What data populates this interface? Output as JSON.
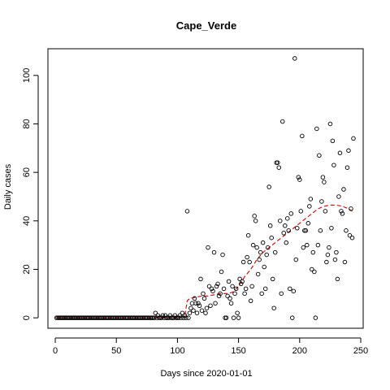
{
  "chart_data": {
    "type": "scatter",
    "title": "Cape_Verde",
    "xlabel": "Days since 2020-01-01",
    "ylabel": "Daily cases",
    "xlim": [
      -6,
      252
    ],
    "ylim": [
      -4.3,
      111
    ],
    "x_ticks": [
      0,
      50,
      100,
      150,
      200,
      250
    ],
    "y_ticks": [
      0,
      20,
      40,
      60,
      80,
      100
    ],
    "grid": false,
    "legend": "none",
    "colors": {
      "points": "#000000",
      "trend": "#d40000"
    },
    "points": [
      [
        1,
        0
      ],
      [
        2,
        0
      ],
      [
        3,
        0
      ],
      [
        4,
        0
      ],
      [
        5,
        0
      ],
      [
        6,
        0
      ],
      [
        7,
        0
      ],
      [
        8,
        0
      ],
      [
        9,
        0
      ],
      [
        10,
        0
      ],
      [
        11,
        0
      ],
      [
        12,
        0
      ],
      [
        13,
        0
      ],
      [
        14,
        0
      ],
      [
        15,
        0
      ],
      [
        16,
        0
      ],
      [
        17,
        0
      ],
      [
        18,
        0
      ],
      [
        19,
        0
      ],
      [
        20,
        0
      ],
      [
        21,
        0
      ],
      [
        22,
        0
      ],
      [
        23,
        0
      ],
      [
        24,
        0
      ],
      [
        25,
        0
      ],
      [
        26,
        0
      ],
      [
        27,
        0
      ],
      [
        28,
        0
      ],
      [
        29,
        0
      ],
      [
        30,
        0
      ],
      [
        31,
        0
      ],
      [
        32,
        0
      ],
      [
        33,
        0
      ],
      [
        34,
        0
      ],
      [
        35,
        0
      ],
      [
        36,
        0
      ],
      [
        37,
        0
      ],
      [
        38,
        0
      ],
      [
        39,
        0
      ],
      [
        40,
        0
      ],
      [
        41,
        0
      ],
      [
        42,
        0
      ],
      [
        43,
        0
      ],
      [
        44,
        0
      ],
      [
        45,
        0
      ],
      [
        46,
        0
      ],
      [
        47,
        0
      ],
      [
        48,
        0
      ],
      [
        49,
        0
      ],
      [
        50,
        0
      ],
      [
        51,
        0
      ],
      [
        52,
        0
      ],
      [
        53,
        0
      ],
      [
        54,
        0
      ],
      [
        55,
        0
      ],
      [
        56,
        0
      ],
      [
        57,
        0
      ],
      [
        58,
        0
      ],
      [
        59,
        0
      ],
      [
        60,
        0
      ],
      [
        61,
        0
      ],
      [
        62,
        0
      ],
      [
        63,
        0
      ],
      [
        64,
        0
      ],
      [
        65,
        0
      ],
      [
        66,
        0
      ],
      [
        67,
        0
      ],
      [
        68,
        0
      ],
      [
        69,
        0
      ],
      [
        70,
        0
      ],
      [
        71,
        0
      ],
      [
        72,
        0
      ],
      [
        73,
        0
      ],
      [
        74,
        0
      ],
      [
        75,
        0
      ],
      [
        76,
        0
      ],
      [
        77,
        0
      ],
      [
        78,
        0
      ],
      [
        79,
        0
      ],
      [
        80,
        0
      ],
      [
        81,
        0
      ],
      [
        82,
        2
      ],
      [
        83,
        0
      ],
      [
        84,
        1
      ],
      [
        85,
        0
      ],
      [
        86,
        0
      ],
      [
        87,
        0
      ],
      [
        88,
        1
      ],
      [
        89,
        0
      ],
      [
        90,
        1
      ],
      [
        91,
        0
      ],
      [
        92,
        0
      ],
      [
        93,
        0
      ],
      [
        94,
        1
      ],
      [
        95,
        0
      ],
      [
        96,
        0
      ],
      [
        97,
        0
      ],
      [
        98,
        1
      ],
      [
        99,
        0
      ],
      [
        100,
        0
      ],
      [
        101,
        0
      ],
      [
        102,
        1
      ],
      [
        103,
        0
      ],
      [
        104,
        2
      ],
      [
        105,
        0
      ],
      [
        106,
        1
      ],
      [
        107,
        0
      ],
      [
        108,
        44
      ],
      [
        109,
        0
      ],
      [
        110,
        2
      ],
      [
        111,
        4
      ],
      [
        112,
        6
      ],
      [
        113,
        3
      ],
      [
        114,
        8
      ],
      [
        115,
        6
      ],
      [
        116,
        2
      ],
      [
        117,
        6
      ],
      [
        118,
        5
      ],
      [
        119,
        16
      ],
      [
        120,
        3
      ],
      [
        121,
        10
      ],
      [
        122,
        8
      ],
      [
        123,
        2
      ],
      [
        124,
        4
      ],
      [
        125,
        29
      ],
      [
        126,
        13
      ],
      [
        127,
        5
      ],
      [
        128,
        12
      ],
      [
        129,
        11
      ],
      [
        130,
        27
      ],
      [
        131,
        6
      ],
      [
        132,
        13
      ],
      [
        133,
        14
      ],
      [
        134,
        9
      ],
      [
        135,
        10
      ],
      [
        136,
        19
      ],
      [
        137,
        26
      ],
      [
        138,
        12
      ],
      [
        139,
        0
      ],
      [
        140,
        0
      ],
      [
        141,
        9
      ],
      [
        142,
        15
      ],
      [
        143,
        8
      ],
      [
        144,
        6
      ],
      [
        145,
        13
      ],
      [
        146,
        0
      ],
      [
        147,
        10
      ],
      [
        148,
        12
      ],
      [
        149,
        2
      ],
      [
        150,
        0
      ],
      [
        151,
        16
      ],
      [
        152,
        14
      ],
      [
        153,
        15
      ],
      [
        154,
        23
      ],
      [
        155,
        10
      ],
      [
        156,
        12
      ],
      [
        157,
        25
      ],
      [
        158,
        34
      ],
      [
        159,
        23
      ],
      [
        160,
        7
      ],
      [
        161,
        13
      ],
      [
        162,
        30
      ],
      [
        163,
        42
      ],
      [
        164,
        40
      ],
      [
        165,
        29
      ],
      [
        166,
        18
      ],
      [
        167,
        24
      ],
      [
        168,
        27
      ],
      [
        169,
        10
      ],
      [
        170,
        31
      ],
      [
        171,
        21
      ],
      [
        172,
        12
      ],
      [
        173,
        26
      ],
      [
        174,
        29
      ],
      [
        175,
        54
      ],
      [
        176,
        38
      ],
      [
        177,
        33
      ],
      [
        178,
        16
      ],
      [
        179,
        4
      ],
      [
        180,
        27
      ],
      [
        181,
        64
      ],
      [
        182,
        64
      ],
      [
        183,
        62
      ],
      [
        184,
        40
      ],
      [
        185,
        10
      ],
      [
        186,
        81
      ],
      [
        187,
        35
      ],
      [
        188,
        38
      ],
      [
        189,
        31
      ],
      [
        190,
        41
      ],
      [
        191,
        36
      ],
      [
        192,
        12
      ],
      [
        193,
        43
      ],
      [
        194,
        0
      ],
      [
        195,
        11
      ],
      [
        196,
        107
      ],
      [
        197,
        24
      ],
      [
        198,
        37
      ],
      [
        199,
        58
      ],
      [
        200,
        57
      ],
      [
        201,
        44
      ],
      [
        202,
        75
      ],
      [
        203,
        29
      ],
      [
        204,
        36
      ],
      [
        205,
        36
      ],
      [
        206,
        30
      ],
      [
        207,
        39
      ],
      [
        208,
        46
      ],
      [
        209,
        49
      ],
      [
        210,
        20
      ],
      [
        211,
        27
      ],
      [
        212,
        19
      ],
      [
        213,
        0
      ],
      [
        214,
        78
      ],
      [
        215,
        30
      ],
      [
        216,
        67
      ],
      [
        217,
        36
      ],
      [
        218,
        48
      ],
      [
        219,
        58
      ],
      [
        220,
        56
      ],
      [
        221,
        44
      ],
      [
        222,
        23
      ],
      [
        223,
        26
      ],
      [
        224,
        29
      ],
      [
        225,
        80
      ],
      [
        226,
        37
      ],
      [
        227,
        73
      ],
      [
        228,
        63
      ],
      [
        229,
        24
      ],
      [
        230,
        27
      ],
      [
        231,
        16
      ],
      [
        232,
        50
      ],
      [
        233,
        68
      ],
      [
        234,
        44
      ],
      [
        235,
        43
      ],
      [
        236,
        53
      ],
      [
        237,
        23
      ],
      [
        238,
        36
      ],
      [
        239,
        62
      ],
      [
        240,
        69
      ],
      [
        241,
        34
      ],
      [
        242,
        45
      ],
      [
        243,
        33
      ],
      [
        244,
        74
      ]
    ],
    "trend": [
      [
        1,
        0
      ],
      [
        20,
        0
      ],
      [
        40,
        0
      ],
      [
        60,
        0
      ],
      [
        80,
        0
      ],
      [
        100,
        0
      ],
      [
        106,
        0.5
      ],
      [
        107,
        4
      ],
      [
        108,
        7
      ],
      [
        110,
        8
      ],
      [
        115,
        8.5
      ],
      [
        120,
        9
      ],
      [
        125,
        9
      ],
      [
        130,
        9.5
      ],
      [
        135,
        10
      ],
      [
        140,
        10
      ],
      [
        145,
        10.5
      ],
      [
        150,
        13
      ],
      [
        155,
        17
      ],
      [
        160,
        20
      ],
      [
        165,
        24
      ],
      [
        170,
        27
      ],
      [
        175,
        29
      ],
      [
        180,
        31
      ],
      [
        185,
        33
      ],
      [
        190,
        35
      ],
      [
        195,
        37
      ],
      [
        200,
        39
      ],
      [
        205,
        41
      ],
      [
        210,
        43
      ],
      [
        215,
        45
      ],
      [
        220,
        46
      ],
      [
        225,
        46.5
      ],
      [
        230,
        46.5
      ],
      [
        235,
        46
      ],
      [
        240,
        45
      ],
      [
        243,
        44
      ]
    ]
  }
}
